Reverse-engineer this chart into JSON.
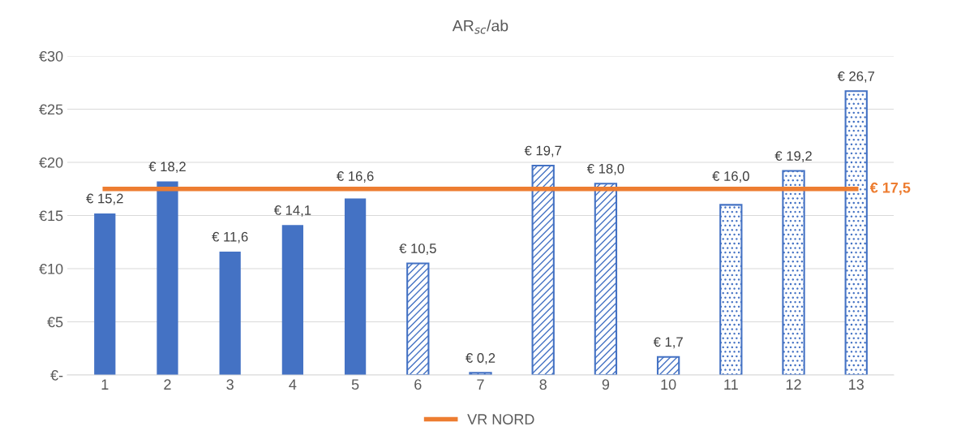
{
  "chart_data": {
    "type": "bar",
    "title": "AR$_{sc}$/ab",
    "categories": [
      "1",
      "2",
      "3",
      "4",
      "5",
      "6",
      "7",
      "8",
      "9",
      "10",
      "11",
      "12",
      "13"
    ],
    "series": [
      {
        "color": "#4472c4",
        "values": [
          15.2,
          18.2,
          11.6,
          14.1,
          16.6,
          null,
          null,
          null,
          null,
          null,
          null,
          null,
          null
        ],
        "value_labels": [
          "€ 15,2",
          "€ 18,2",
          "€ 11,6",
          "€ 14,1",
          "€ 16,6",
          null,
          null,
          null,
          null,
          null,
          null,
          null,
          null
        ]
      },
      {
        "color": "#4472c4",
        "values": [
          null,
          null,
          null,
          null,
          null,
          10.5,
          0.2,
          19.7,
          18.0,
          1.7,
          null,
          null,
          null
        ],
        "value_labels": [
          null,
          null,
          null,
          null,
          null,
          "€ 10,5",
          "€ 0,2",
          "€ 19,7",
          "€ 18,0",
          "€ 1,7",
          null,
          null,
          null
        ]
      },
      {
        "color": "#4472c4",
        "values": [
          null,
          null,
          null,
          null,
          null,
          null,
          null,
          null,
          null,
          null,
          16.0,
          19.2,
          26.7
        ],
        "value_labels": [
          null,
          null,
          null,
          null,
          null,
          null,
          null,
          null,
          null,
          null,
          "€ 16,0",
          "€ 19,2",
          "€ 26,7"
        ]
      },
      {
        "type": "line",
        "name": "VR NORD",
        "color": "#ed7d31",
        "values": [
          17.5,
          17.5,
          17.5,
          17.5,
          17.5,
          17.5,
          17.5,
          17.5,
          17.5,
          17.5,
          17.5,
          17.5,
          17.5
        ],
        "value_labels": [
          null,
          null,
          null,
          null,
          null,
          null,
          null,
          null,
          null,
          null,
          null,
          null,
          "€ 17,5"
        ]
      }
    ],
    "ylim": [
      0,
      30
    ],
    "yticks": [
      {
        "value": 0,
        "label": "€-"
      },
      {
        "value": 5,
        "label": "€5"
      },
      {
        "value": 10,
        "label": "€10"
      },
      {
        "value": 15,
        "label": "€15"
      },
      {
        "value": 20,
        "label": "€20"
      },
      {
        "value": 25,
        "label": "€25"
      },
      {
        "value": 30,
        "label": "€30"
      }
    ],
    "grid": "y",
    "legend": "bottom"
  }
}
